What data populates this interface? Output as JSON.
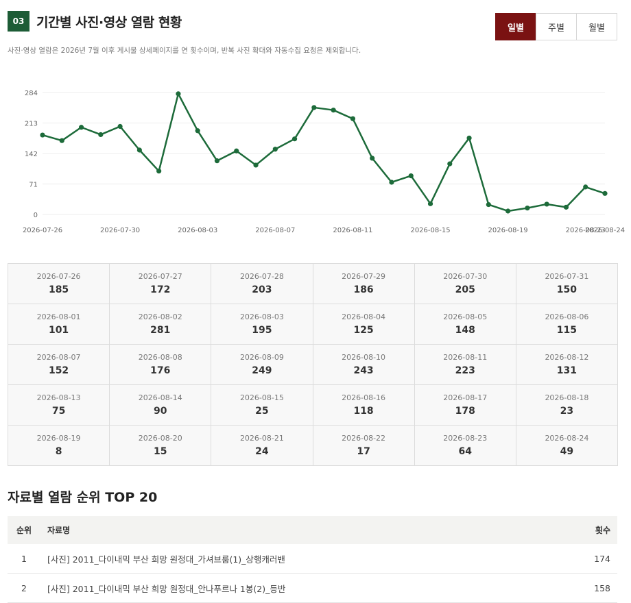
{
  "header": {
    "number": "03",
    "title": "기간별 사진·영상 열람 현황",
    "description": "사진·영상 열람은 2026년 7월 이후 게시물 상세페이지를 연 횟수이며, 반복 사진 확대와 자동수집 요청은 제외합니다."
  },
  "period_toggle": {
    "daily": "일별",
    "weekly": "주별",
    "monthly": "월별",
    "selected": "daily"
  },
  "colors": {
    "accent_green": "#1d5c36",
    "active_button": "#7a1212",
    "line": "#1d6b3a"
  },
  "chart_data": {
    "type": "line",
    "x": [
      "2026-07-26",
      "2026-07-27",
      "2026-07-28",
      "2026-07-29",
      "2026-07-30",
      "2026-07-31",
      "2026-08-01",
      "2026-08-02",
      "2026-08-03",
      "2026-08-04",
      "2026-08-05",
      "2026-08-06",
      "2026-08-07",
      "2026-08-08",
      "2026-08-09",
      "2026-08-10",
      "2026-08-11",
      "2026-08-12",
      "2026-08-13",
      "2026-08-14",
      "2026-08-15",
      "2026-08-16",
      "2026-08-17",
      "2026-08-18",
      "2026-08-19",
      "2026-08-20",
      "2026-08-21",
      "2026-08-22",
      "2026-08-23",
      "2026-08-24"
    ],
    "values": [
      185,
      172,
      203,
      186,
      205,
      150,
      101,
      281,
      195,
      125,
      148,
      115,
      152,
      176,
      249,
      243,
      223,
      131,
      75,
      90,
      25,
      118,
      178,
      23,
      8,
      15,
      24,
      17,
      64,
      49
    ],
    "y_ticks": [
      0,
      71,
      142,
      213,
      284
    ],
    "x_tick_labels": [
      "2026-07-26",
      "2026-07-30",
      "2026-08-03",
      "2026-08-07",
      "2026-08-11",
      "2026-08-15",
      "2026-08-19",
      "2026-08-23",
      "2026-08-24"
    ],
    "ylim": [
      0,
      284
    ],
    "grid": true,
    "title": "",
    "xlabel": "",
    "ylabel": ""
  },
  "daily_table": [
    {
      "date": "2026-07-26",
      "value": "185"
    },
    {
      "date": "2026-07-27",
      "value": "172"
    },
    {
      "date": "2026-07-28",
      "value": "203"
    },
    {
      "date": "2026-07-29",
      "value": "186"
    },
    {
      "date": "2026-07-30",
      "value": "205"
    },
    {
      "date": "2026-07-31",
      "value": "150"
    },
    {
      "date": "2026-08-01",
      "value": "101"
    },
    {
      "date": "2026-08-02",
      "value": "281"
    },
    {
      "date": "2026-08-03",
      "value": "195"
    },
    {
      "date": "2026-08-04",
      "value": "125"
    },
    {
      "date": "2026-08-05",
      "value": "148"
    },
    {
      "date": "2026-08-06",
      "value": "115"
    },
    {
      "date": "2026-08-07",
      "value": "152"
    },
    {
      "date": "2026-08-08",
      "value": "176"
    },
    {
      "date": "2026-08-09",
      "value": "249"
    },
    {
      "date": "2026-08-10",
      "value": "243"
    },
    {
      "date": "2026-08-11",
      "value": "223"
    },
    {
      "date": "2026-08-12",
      "value": "131"
    },
    {
      "date": "2026-08-13",
      "value": "75"
    },
    {
      "date": "2026-08-14",
      "value": "90"
    },
    {
      "date": "2026-08-15",
      "value": "25"
    },
    {
      "date": "2026-08-16",
      "value": "118"
    },
    {
      "date": "2026-08-17",
      "value": "178"
    },
    {
      "date": "2026-08-18",
      "value": "23"
    },
    {
      "date": "2026-08-19",
      "value": "8"
    },
    {
      "date": "2026-08-20",
      "value": "15"
    },
    {
      "date": "2026-08-21",
      "value": "24"
    },
    {
      "date": "2026-08-22",
      "value": "17"
    },
    {
      "date": "2026-08-23",
      "value": "64"
    },
    {
      "date": "2026-08-24",
      "value": "49"
    }
  ],
  "ranking": {
    "title": "자료별 열람 순위 TOP 20",
    "columns": {
      "rank": "순위",
      "title": "자료명",
      "count": "횟수"
    },
    "rows": [
      {
        "rank": "1",
        "title": "[사진] 2011_다이내믹 부산 희망 원정대_가셔브룸(1)_상행캐러밴",
        "count": "174"
      },
      {
        "rank": "2",
        "title": "[사진] 2011_다이내믹 부산 희망 원정대_안나푸르나 1봉(2)_등반",
        "count": "158"
      }
    ]
  }
}
